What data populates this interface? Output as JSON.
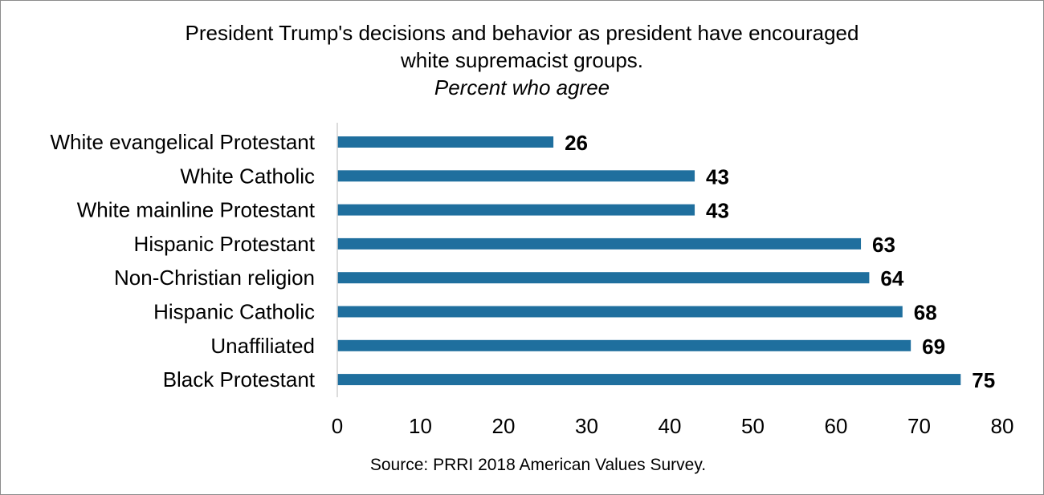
{
  "chart_data": {
    "type": "bar",
    "orientation": "horizontal",
    "title_lines": [
      "President Trump's decisions and behavior as president have encouraged",
      "white supremacist groups."
    ],
    "subtitle": "Percent who agree",
    "categories": [
      "White evangelical Protestant",
      "White Catholic",
      "White mainline Protestant",
      "Hispanic Protestant",
      "Non-Christian religion",
      "Hispanic Catholic",
      "Unaffiliated",
      "Black Protestant"
    ],
    "values": [
      26,
      43,
      43,
      63,
      64,
      68,
      69,
      75
    ],
    "xlim": [
      0,
      80
    ],
    "xticks": [
      0,
      10,
      20,
      30,
      40,
      50,
      60,
      70,
      80
    ],
    "bar_color": "#1f6f9e",
    "grid": false,
    "legend": "none",
    "source": "Source: PRRI 2018 American Values Survey."
  }
}
